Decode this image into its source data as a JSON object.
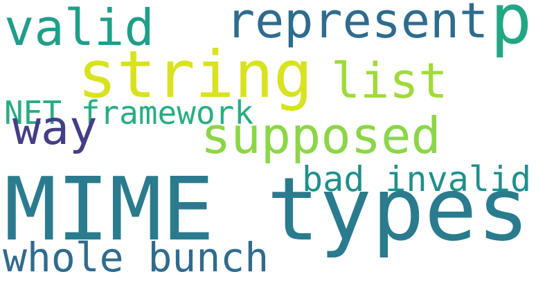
{
  "word_cloud": {
    "words": [
      {
        "text": "MIME types",
        "color": "#2a7b8e"
      },
      {
        "text": "string",
        "color": "#d8e21e"
      },
      {
        "text": "represent",
        "color": "#2e6c8e"
      },
      {
        "text": "p",
        "color": "#22a784"
      },
      {
        "text": "valid",
        "color": "#1f9e89"
      },
      {
        "text": "list",
        "color": "#a0da39"
      },
      {
        "text": "supposed",
        "color": "#8bd646"
      },
      {
        "text": "way",
        "color": "#433e85"
      },
      {
        "text": "NET framework",
        "color": "#27ad81"
      },
      {
        "text": "bad invalid",
        "color": "#208f8c"
      },
      {
        "text": "whole bunch",
        "color": "#2f6b8e"
      }
    ]
  }
}
